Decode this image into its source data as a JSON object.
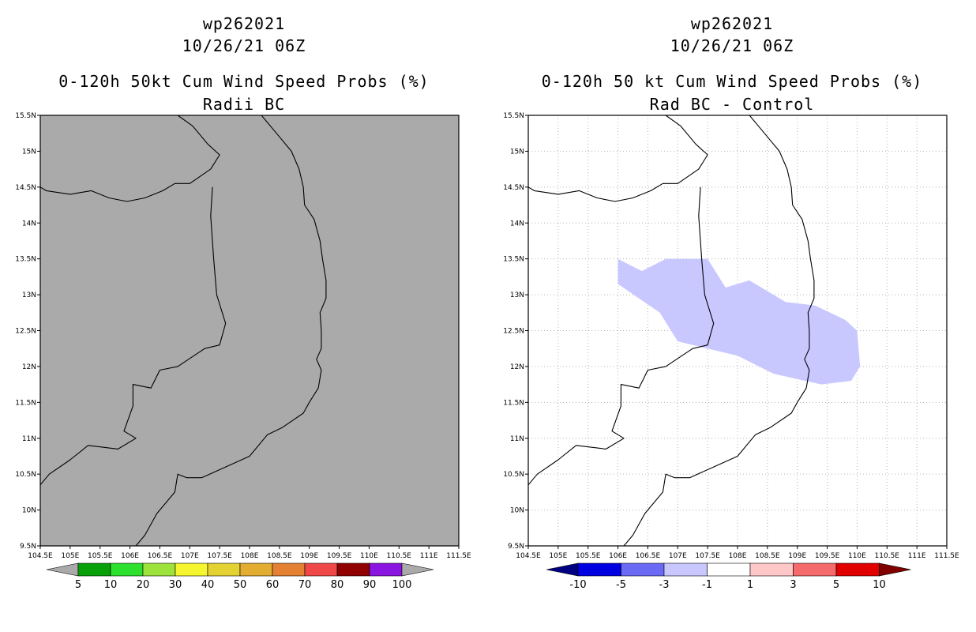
{
  "panels": [
    {
      "storm_id": "wp262021",
      "datetime": "10/26/21 06Z",
      "title": "0-120h 50kt Cum Wind Speed Probs (%)",
      "subtitle": "Radii BC",
      "map_fill": "#aaaaaa",
      "gridlines": false,
      "colorbar": {
        "labels": [
          "5",
          "10",
          "20",
          "30",
          "40",
          "50",
          "60",
          "70",
          "80",
          "90",
          "100"
        ],
        "colors": [
          "#08a008",
          "#2ee02e",
          "#9ee33c",
          "#f5f530",
          "#e3d232",
          "#e3ad32",
          "#e38032",
          "#f04848",
          "#900000",
          "#8a14e0"
        ],
        "end_left": "#aaaaaa",
        "end_right": "#aaaaaa"
      }
    },
    {
      "storm_id": "wp262021",
      "datetime": "10/26/21 06Z",
      "title": "0-120h 50 kt Cum Wind Speed Probs (%)",
      "subtitle": "Rad BC - Control",
      "map_fill": "#ffffff",
      "gridlines": true,
      "difference_area": {
        "value_range": "-3 to -1",
        "color": "#c8c8ff",
        "polygon_lonlat": [
          [
            106.0,
            13.5
          ],
          [
            106.4,
            13.33
          ],
          [
            106.8,
            13.5
          ],
          [
            107.5,
            13.5
          ],
          [
            107.8,
            13.1
          ],
          [
            108.2,
            13.2
          ],
          [
            108.8,
            12.9
          ],
          [
            109.3,
            12.85
          ],
          [
            109.8,
            12.65
          ],
          [
            110.0,
            12.5
          ],
          [
            110.05,
            12.0
          ],
          [
            109.9,
            11.8
          ],
          [
            109.4,
            11.75
          ],
          [
            108.6,
            11.9
          ],
          [
            108.0,
            12.15
          ],
          [
            107.5,
            12.25
          ],
          [
            107.0,
            12.35
          ],
          [
            106.7,
            12.75
          ],
          [
            106.0,
            13.15
          ]
        ]
      },
      "colorbar": {
        "labels": [
          "-10",
          "-5",
          "-3",
          "-1",
          "1",
          "3",
          "5",
          "10"
        ],
        "colors": [
          "#0000e0",
          "#6a6af5",
          "#c8c8ff",
          "#ffffff",
          "#ffc8c8",
          "#f56a6a",
          "#e00000"
        ],
        "end_left": "#000080",
        "end_right": "#800000"
      }
    }
  ],
  "map_extent": {
    "lon": [
      104.5,
      111.5
    ],
    "lat": [
      9.5,
      15.5
    ]
  },
  "lon_ticks": [
    "104.5E",
    "105E",
    "105.5E",
    "106E",
    "106.5E",
    "107E",
    "107.5E",
    "108E",
    "108.5E",
    "109E",
    "109.5E",
    "110E",
    "110.5E",
    "111E",
    "111.5E"
  ],
  "lat_ticks": [
    "9.5N",
    "10N",
    "10.5N",
    "11N",
    "11.5N",
    "12N",
    "12.5N",
    "13N",
    "13.5N",
    "14N",
    "14.5N",
    "15N",
    "15.5N"
  ],
  "lon_values": [
    104.5,
    105,
    105.5,
    106,
    106.5,
    107,
    107.5,
    108,
    108.5,
    109,
    109.5,
    110,
    110.5,
    111,
    111.5
  ],
  "lat_values": [
    9.5,
    10,
    10.5,
    11,
    11.5,
    12,
    12.5,
    13,
    13.5,
    14,
    14.5,
    15,
    15.5
  ],
  "line_colors": {
    "coast": "#000000",
    "grid": "#b4b4b4"
  },
  "coastline_lonlat": [
    [
      108.2,
      15.5
    ],
    [
      108.45,
      15.25
    ],
    [
      108.7,
      15.0
    ],
    [
      108.83,
      14.75
    ],
    [
      108.9,
      14.5
    ],
    [
      108.92,
      14.25
    ],
    [
      109.08,
      14.05
    ],
    [
      109.18,
      13.75
    ],
    [
      109.22,
      13.5
    ],
    [
      109.28,
      13.2
    ],
    [
      109.28,
      12.95
    ],
    [
      109.18,
      12.75
    ],
    [
      109.2,
      12.5
    ],
    [
      109.2,
      12.25
    ],
    [
      109.12,
      12.1
    ],
    [
      109.2,
      11.95
    ],
    [
      109.15,
      11.7
    ],
    [
      109.0,
      11.5
    ],
    [
      108.9,
      11.35
    ],
    [
      108.55,
      11.15
    ],
    [
      108.3,
      11.05
    ],
    [
      108.0,
      10.75
    ],
    [
      107.6,
      10.6
    ],
    [
      107.2,
      10.45
    ],
    [
      106.95,
      10.45
    ],
    [
      106.8,
      10.5
    ],
    [
      106.75,
      10.25
    ],
    [
      106.6,
      10.1
    ],
    [
      106.45,
      9.95
    ],
    [
      106.25,
      9.65
    ],
    [
      106.1,
      9.5
    ]
  ],
  "border_lonlat": [
    [
      106.8,
      15.5
    ],
    [
      107.05,
      15.35
    ],
    [
      107.3,
      15.1
    ],
    [
      107.5,
      14.95
    ],
    [
      107.35,
      14.75
    ],
    [
      107.0,
      14.55
    ],
    [
      106.75,
      14.55
    ],
    [
      106.55,
      14.45
    ],
    [
      106.25,
      14.35
    ],
    [
      105.95,
      14.3
    ],
    [
      105.65,
      14.35
    ],
    [
      105.35,
      14.45
    ],
    [
      105.0,
      14.4
    ],
    [
      104.6,
      14.45
    ],
    [
      104.5,
      14.5
    ]
  ],
  "border2_lonlat": [
    [
      107.38,
      14.5
    ],
    [
      107.35,
      14.1
    ],
    [
      107.4,
      13.5
    ],
    [
      107.45,
      13.0
    ],
    [
      107.6,
      12.6
    ],
    [
      107.5,
      12.3
    ],
    [
      107.25,
      12.25
    ],
    [
      106.8,
      12.0
    ],
    [
      106.5,
      11.95
    ],
    [
      106.35,
      11.7
    ],
    [
      106.05,
      11.75
    ],
    [
      106.05,
      11.45
    ],
    [
      105.9,
      11.1
    ],
    [
      106.1,
      11.0
    ],
    [
      105.8,
      10.85
    ],
    [
      105.3,
      10.9
    ],
    [
      105.0,
      10.7
    ],
    [
      104.65,
      10.5
    ],
    [
      104.5,
      10.35
    ]
  ]
}
